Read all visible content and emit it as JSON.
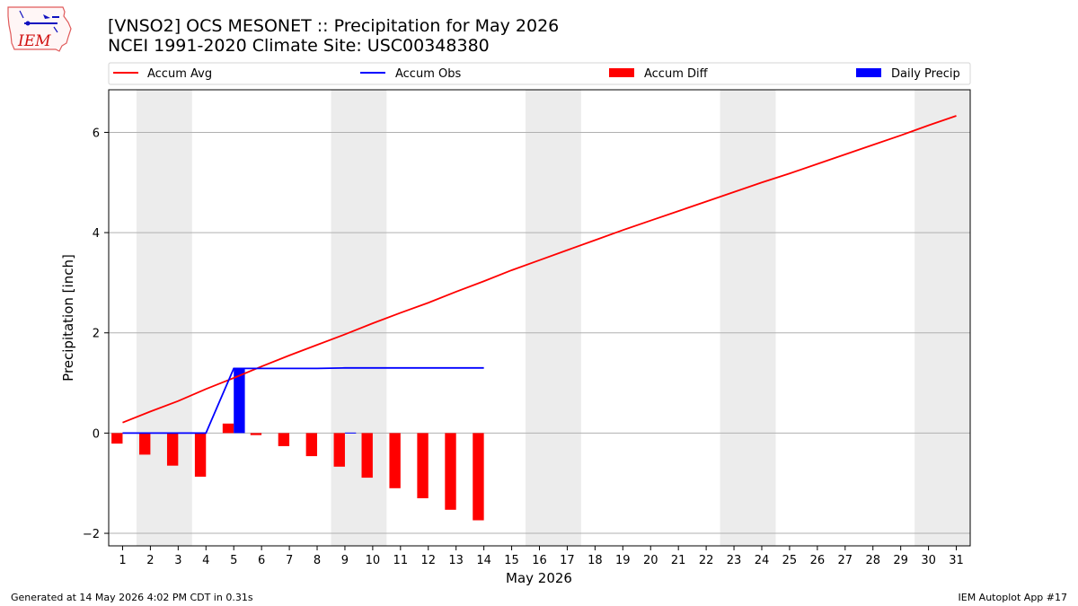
{
  "logo": {
    "text": "IEM"
  },
  "footer": {
    "left": "Generated at 14 May 2026 4:02 PM CDT in 0.31s",
    "right": "IEM Autoplot App #17"
  },
  "chart_data": {
    "type": "bar",
    "title": "[VNSO2] OCS MESONET :: Precipitation for May 2026",
    "subtitle": "NCEI 1991-2020 Climate Site: USC00348380",
    "xlabel": "May 2026",
    "ylabel": "Precipitation [inch]",
    "xlim": [
      0.5,
      31.5
    ],
    "ylim": [
      -2.25,
      6.85
    ],
    "yticks": [
      -2,
      0,
      2,
      4,
      6
    ],
    "xticks": [
      1,
      2,
      3,
      4,
      5,
      6,
      7,
      8,
      9,
      10,
      11,
      12,
      13,
      14,
      15,
      16,
      17,
      18,
      19,
      20,
      21,
      22,
      23,
      24,
      25,
      26,
      27,
      28,
      29,
      30,
      31
    ],
    "grid": true,
    "legend_position": "top",
    "weekend_shading": [
      [
        1.5,
        3.5
      ],
      [
        8.5,
        10.5
      ],
      [
        15.5,
        17.5
      ],
      [
        22.5,
        24.5
      ],
      [
        29.5,
        31.5
      ]
    ],
    "colors": {
      "accum_avg": "#ff0000",
      "accum_obs": "#0000ff",
      "accum_diff": "#ff0000",
      "daily_precip": "#0000ff",
      "weekend": "#ececec",
      "grid": "#b0b0b0"
    },
    "legend": [
      "Accum Avg",
      "Accum Obs",
      "Accum Diff",
      "Daily Precip"
    ],
    "series": [
      {
        "name": "Accum Avg",
        "type": "line",
        "x": [
          1,
          2,
          3,
          4,
          5,
          6,
          7,
          8,
          9,
          10,
          11,
          12,
          13,
          14,
          15,
          16,
          17,
          18,
          19,
          20,
          21,
          22,
          23,
          24,
          25,
          26,
          27,
          28,
          29,
          30,
          31
        ],
        "values": [
          0.21,
          0.43,
          0.64,
          0.88,
          1.1,
          1.33,
          1.55,
          1.76,
          1.97,
          2.19,
          2.4,
          2.6,
          2.82,
          3.03,
          3.25,
          3.45,
          3.65,
          3.85,
          4.05,
          4.24,
          4.43,
          4.62,
          4.81,
          5.0,
          5.18,
          5.37,
          5.56,
          5.75,
          5.94,
          6.14,
          6.33
        ]
      },
      {
        "name": "Accum Obs",
        "type": "line",
        "x": [
          1,
          2,
          3,
          4,
          5,
          6,
          7,
          8,
          9,
          10,
          11,
          12,
          13,
          14
        ],
        "values": [
          0,
          0,
          0,
          0,
          1.29,
          1.29,
          1.29,
          1.29,
          1.3,
          1.3,
          1.3,
          1.3,
          1.3,
          1.3
        ]
      },
      {
        "name": "Accum Diff",
        "type": "bar",
        "x": [
          1,
          2,
          3,
          4,
          5,
          6,
          7,
          8,
          9,
          10,
          11,
          12,
          13,
          14
        ],
        "values": [
          -0.21,
          -0.43,
          -0.65,
          -0.87,
          0.19,
          -0.04,
          -0.26,
          -0.46,
          -0.67,
          -0.89,
          -1.1,
          -1.3,
          -1.53,
          -1.74
        ]
      },
      {
        "name": "Daily Precip",
        "type": "bar",
        "x": [
          1,
          2,
          3,
          4,
          5,
          6,
          7,
          8,
          9,
          10,
          11,
          12,
          13,
          14
        ],
        "values": [
          0,
          0,
          0,
          0,
          1.29,
          0,
          0,
          0,
          0.01,
          0,
          0,
          0,
          0,
          0
        ]
      }
    ]
  }
}
